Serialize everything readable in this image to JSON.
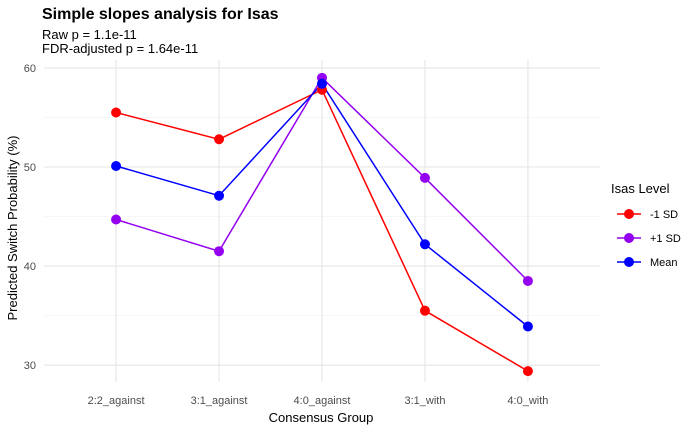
{
  "chart_data": {
    "type": "line",
    "title": "Simple slopes analysis for Isas",
    "subtitle_lines": [
      "Raw p = 1.1e-11",
      "FDR-adjusted p = 1.64e-11"
    ],
    "xlabel": "Consensus Group",
    "ylabel": "Predicted Switch Probability (%)",
    "categories": [
      "2:2_against",
      "3:1_against",
      "4:0_against",
      "3:1_with",
      "4:0_with"
    ],
    "ylim": [
      28.3,
      60.8
    ],
    "yticks": [
      30,
      40,
      50,
      60
    ],
    "grid": true,
    "legend": {
      "title": "Isas Level",
      "position": "right"
    },
    "series": [
      {
        "name": "-1 SD",
        "color": "#ff0000",
        "values": [
          55.5,
          52.8,
          57.8,
          35.5,
          29.4
        ]
      },
      {
        "name": "+1 SD",
        "color": "#9400f0",
        "values": [
          44.7,
          41.5,
          59.0,
          48.9,
          38.5
        ]
      },
      {
        "name": "Mean",
        "color": "#0000ff",
        "values": [
          50.1,
          47.1,
          58.4,
          42.2,
          33.9
        ]
      }
    ]
  }
}
